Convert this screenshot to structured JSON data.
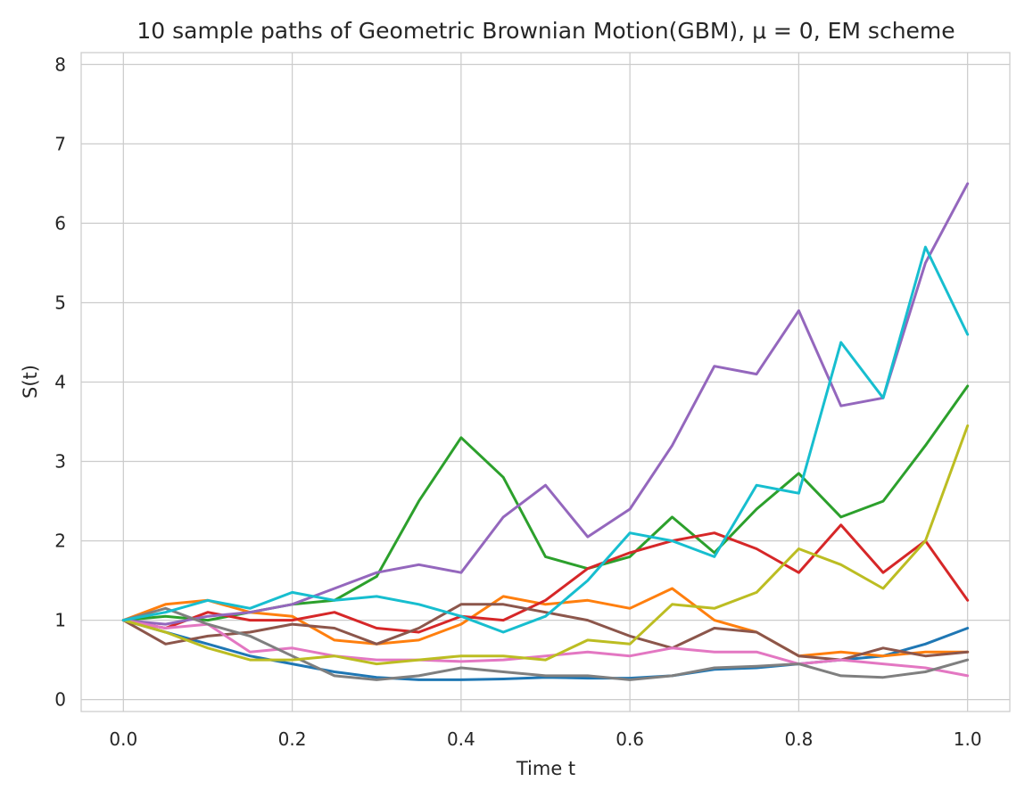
{
  "chart_data": {
    "type": "line",
    "title": "10 sample paths of Geometric Brownian Motion(GBM), μ = 0, EM scheme",
    "xlabel": "Time t",
    "ylabel": "S(t)",
    "xlim": [
      -0.05,
      1.05
    ],
    "ylim": [
      -0.15,
      8.15
    ],
    "x_ticks": [
      "0.0",
      "0.2",
      "0.4",
      "0.6",
      "0.8",
      "1.0"
    ],
    "y_ticks": [
      "0",
      "1",
      "2",
      "3",
      "4",
      "5",
      "6",
      "7",
      "8"
    ],
    "grid": true,
    "legend": "none",
    "x": [
      0.0,
      0.05,
      0.1,
      0.15,
      0.2,
      0.25,
      0.3,
      0.35,
      0.4,
      0.45,
      0.5,
      0.55,
      0.6,
      0.65,
      0.7,
      0.75,
      0.8,
      0.85,
      0.9,
      0.95,
      1.0
    ],
    "series": [
      {
        "color": "#1f77b4",
        "values": [
          1.0,
          0.85,
          0.7,
          0.55,
          0.45,
          0.35,
          0.28,
          0.25,
          0.25,
          0.26,
          0.28,
          0.27,
          0.27,
          0.3,
          0.38,
          0.4,
          0.45,
          0.5,
          0.55,
          0.7,
          0.9
        ]
      },
      {
        "color": "#ff7f0e",
        "values": [
          1.0,
          1.2,
          1.25,
          1.1,
          1.05,
          0.75,
          0.7,
          0.75,
          0.95,
          1.3,
          1.2,
          1.25,
          1.15,
          1.4,
          1.0,
          0.85,
          0.55,
          0.6,
          0.55,
          0.6,
          0.6
        ]
      },
      {
        "color": "#2ca02c",
        "values": [
          1.0,
          1.05,
          1.0,
          1.1,
          1.2,
          1.25,
          1.55,
          2.5,
          3.3,
          2.8,
          1.8,
          1.65,
          1.8,
          2.3,
          1.85,
          2.4,
          2.85,
          2.3,
          2.5,
          3.2,
          3.95
        ]
      },
      {
        "color": "#d62728",
        "values": [
          1.0,
          0.9,
          1.1,
          1.0,
          1.0,
          1.1,
          0.9,
          0.85,
          1.05,
          1.0,
          1.25,
          1.65,
          1.85,
          2.0,
          2.1,
          1.9,
          1.6,
          2.2,
          1.6,
          2.0,
          1.25
        ]
      },
      {
        "color": "#9467bd",
        "values": [
          1.0,
          0.95,
          1.05,
          1.1,
          1.2,
          1.4,
          1.6,
          1.7,
          1.6,
          2.3,
          2.7,
          2.05,
          2.4,
          3.2,
          4.2,
          4.1,
          4.9,
          3.7,
          3.8,
          5.5,
          6.5
        ]
      },
      {
        "color": "#8c564b",
        "values": [
          1.0,
          0.7,
          0.8,
          0.85,
          0.95,
          0.9,
          0.7,
          0.9,
          1.2,
          1.2,
          1.1,
          1.0,
          0.8,
          0.65,
          0.9,
          0.85,
          0.55,
          0.5,
          0.65,
          0.55,
          0.6
        ]
      },
      {
        "color": "#e377c2",
        "values": [
          1.0,
          0.9,
          0.95,
          0.6,
          0.65,
          0.55,
          0.5,
          0.5,
          0.48,
          0.5,
          0.55,
          0.6,
          0.55,
          0.65,
          0.6,
          0.6,
          0.45,
          0.5,
          0.45,
          0.4,
          0.3
        ]
      },
      {
        "color": "#7f7f7f",
        "values": [
          1.0,
          1.15,
          0.95,
          0.8,
          0.55,
          0.3,
          0.25,
          0.3,
          0.4,
          0.35,
          0.3,
          0.3,
          0.25,
          0.3,
          0.4,
          0.42,
          0.45,
          0.3,
          0.28,
          0.35,
          0.5
        ]
      },
      {
        "color": "#bcbd22",
        "values": [
          1.0,
          0.85,
          0.65,
          0.5,
          0.5,
          0.55,
          0.45,
          0.5,
          0.55,
          0.55,
          0.5,
          0.75,
          0.7,
          1.2,
          1.15,
          1.35,
          1.9,
          1.7,
          1.4,
          2.0,
          3.45
        ]
      },
      {
        "color": "#17becf",
        "values": [
          1.0,
          1.1,
          1.25,
          1.15,
          1.35,
          1.25,
          1.3,
          1.2,
          1.05,
          0.85,
          1.05,
          1.5,
          2.1,
          2.0,
          1.8,
          2.7,
          2.6,
          4.5,
          3.8,
          5.7,
          4.6
        ]
      }
    ]
  }
}
